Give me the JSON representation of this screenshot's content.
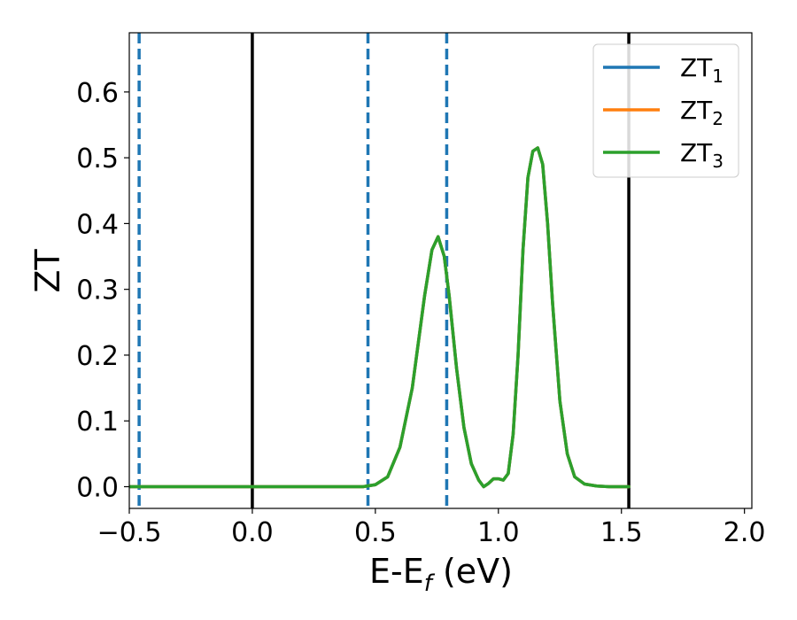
{
  "chart_data": {
    "type": "line",
    "title": "",
    "xlabel_main": "E-E",
    "xlabel_sub": "f",
    "xlabel_unit": " (eV)",
    "ylabel": "ZT",
    "xlim": [
      -0.5,
      2.03
    ],
    "ylim": [
      -0.033,
      0.69
    ],
    "x_ticks": [
      -0.5,
      0.0,
      0.5,
      1.0,
      1.5,
      2.0
    ],
    "x_tick_labels": [
      "−0.5",
      "0.0",
      "0.5",
      "1.0",
      "1.5",
      "2.0"
    ],
    "y_ticks": [
      0.0,
      0.1,
      0.2,
      0.3,
      0.4,
      0.5,
      0.6
    ],
    "y_tick_labels": [
      "0.0",
      "0.1",
      "0.2",
      "0.3",
      "0.4",
      "0.5",
      "0.6"
    ],
    "grid": false,
    "legend_position": "top-right",
    "series": [
      {
        "label_main": "ZT",
        "label_sub": "1",
        "color": "#1f77b4",
        "x": [
          -0.5,
          0.0,
          0.45,
          0.5,
          0.55,
          0.6,
          0.65,
          0.7,
          0.73,
          0.755,
          0.78,
          0.8,
          0.83,
          0.86,
          0.89,
          0.92,
          0.94,
          0.96,
          0.98,
          1.0,
          1.02,
          1.04,
          1.06,
          1.08,
          1.1,
          1.12,
          1.14,
          1.16,
          1.18,
          1.2,
          1.22,
          1.25,
          1.28,
          1.31,
          1.35,
          1.4,
          1.45,
          1.53
        ],
        "y": [
          0,
          0,
          0,
          0.003,
          0.015,
          0.06,
          0.15,
          0.29,
          0.36,
          0.38,
          0.35,
          0.29,
          0.18,
          0.09,
          0.035,
          0.01,
          0.0,
          0.005,
          0.012,
          0.012,
          0.01,
          0.02,
          0.08,
          0.2,
          0.36,
          0.47,
          0.51,
          0.515,
          0.49,
          0.4,
          0.28,
          0.13,
          0.05,
          0.015,
          0.004,
          0.001,
          0.0,
          0.0
        ]
      },
      {
        "label_main": "ZT",
        "label_sub": "2",
        "color": "#ff7f0e",
        "x": [
          -0.5,
          0.0,
          0.45,
          0.5,
          0.55,
          0.6,
          0.65,
          0.7,
          0.73,
          0.755,
          0.78,
          0.8,
          0.83,
          0.86,
          0.89,
          0.92,
          0.94,
          0.96,
          0.98,
          1.0,
          1.02,
          1.04,
          1.06,
          1.08,
          1.1,
          1.12,
          1.14,
          1.16,
          1.18,
          1.2,
          1.22,
          1.25,
          1.28,
          1.31,
          1.35,
          1.4,
          1.45,
          1.53
        ],
        "y": [
          0,
          0,
          0,
          0.003,
          0.015,
          0.06,
          0.15,
          0.29,
          0.36,
          0.38,
          0.35,
          0.29,
          0.18,
          0.09,
          0.035,
          0.01,
          0.0,
          0.005,
          0.012,
          0.012,
          0.01,
          0.02,
          0.08,
          0.2,
          0.36,
          0.47,
          0.51,
          0.515,
          0.49,
          0.4,
          0.28,
          0.13,
          0.05,
          0.015,
          0.004,
          0.001,
          0.0,
          0.0
        ]
      },
      {
        "label_main": "ZT",
        "label_sub": "3",
        "color": "#2ca02c",
        "x": [
          -0.5,
          0.0,
          0.45,
          0.5,
          0.55,
          0.6,
          0.65,
          0.7,
          0.73,
          0.755,
          0.78,
          0.8,
          0.83,
          0.86,
          0.89,
          0.92,
          0.94,
          0.96,
          0.98,
          1.0,
          1.02,
          1.04,
          1.06,
          1.08,
          1.1,
          1.12,
          1.14,
          1.16,
          1.18,
          1.2,
          1.22,
          1.25,
          1.28,
          1.31,
          1.35,
          1.4,
          1.45,
          1.53
        ],
        "y": [
          0,
          0,
          0,
          0.003,
          0.015,
          0.06,
          0.15,
          0.29,
          0.36,
          0.38,
          0.35,
          0.29,
          0.18,
          0.09,
          0.035,
          0.01,
          0.0,
          0.005,
          0.012,
          0.012,
          0.01,
          0.02,
          0.08,
          0.2,
          0.36,
          0.47,
          0.51,
          0.515,
          0.49,
          0.4,
          0.28,
          0.13,
          0.05,
          0.015,
          0.004,
          0.001,
          0.0,
          0.0
        ]
      }
    ],
    "vertical_lines": [
      {
        "x": -0.46,
        "style": "dashed",
        "color": "#1f77b4"
      },
      {
        "x": 0.47,
        "style": "dashed",
        "color": "#1f77b4"
      },
      {
        "x": 0.79,
        "style": "dashed",
        "color": "#1f77b4"
      },
      {
        "x": 0.0,
        "style": "solid",
        "color": "#000000"
      },
      {
        "x": 1.53,
        "style": "solid",
        "color": "#000000"
      }
    ]
  }
}
